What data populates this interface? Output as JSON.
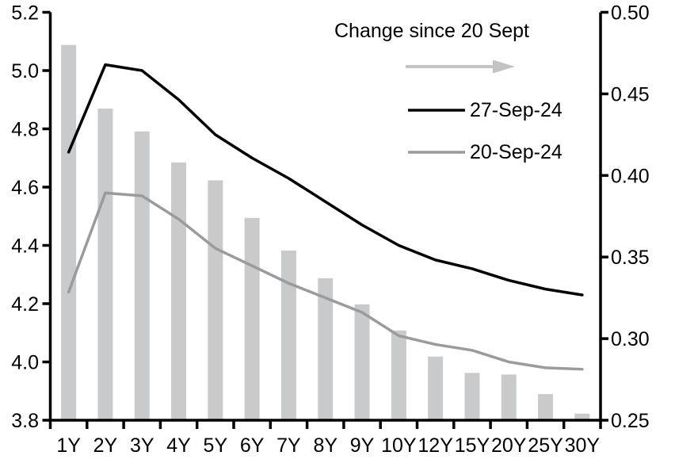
{
  "chart_data": {
    "type": "combo_bar_line",
    "categories": [
      "1Y",
      "2Y",
      "3Y",
      "4Y",
      "5Y",
      "6Y",
      "7Y",
      "8Y",
      "9Y",
      "10Y",
      "12Y",
      "15Y",
      "20Y",
      "25Y",
      "30Y"
    ],
    "bar_series": {
      "name": "Change since 20 Sept",
      "axis": "right",
      "values": [
        0.48,
        0.441,
        0.427,
        0.408,
        0.397,
        0.374,
        0.354,
        0.337,
        0.321,
        0.305,
        0.289,
        0.279,
        0.278,
        0.266,
        0.254
      ]
    },
    "line_series": [
      {
        "name": "27-Sep-24",
        "axis": "left",
        "values": [
          4.72,
          5.02,
          5.0,
          4.9,
          4.78,
          4.7,
          4.63,
          4.55,
          4.47,
          4.4,
          4.35,
          4.32,
          4.28,
          4.25,
          4.23
        ]
      },
      {
        "name": "20-Sep-24",
        "axis": "left",
        "values": [
          4.24,
          4.58,
          4.57,
          4.49,
          4.39,
          4.33,
          4.27,
          4.22,
          4.17,
          4.09,
          4.06,
          4.04,
          4.0,
          3.98,
          3.975
        ]
      }
    ],
    "left_axis": {
      "min": 3.8,
      "max": 5.2,
      "tick_labels": [
        "5.2",
        "5.0",
        "4.8",
        "4.6",
        "4.4",
        "4.2",
        "4.0",
        "3.8"
      ]
    },
    "right_axis": {
      "min": 0.25,
      "max": 0.5,
      "tick_labels": [
        "0.50",
        "0.45",
        "0.40",
        "0.35",
        "0.30",
        "0.25"
      ]
    },
    "legend": {
      "title": "Change since 20 Sept",
      "arrow_icon": "right-arrow",
      "entry_1": "27-Sep-24",
      "entry_2": "20-Sep-24"
    },
    "colors": {
      "bar": "#c9cacb",
      "line_27sep": "#000000",
      "line_20sep": "#9b9b9b",
      "arrow": "#c3c3c3",
      "axis": "#000000"
    },
    "layout_hints": {
      "grid": "off",
      "legend_position": "top-right-inside",
      "bar_baseline_right_axis": 0.25
    }
  }
}
